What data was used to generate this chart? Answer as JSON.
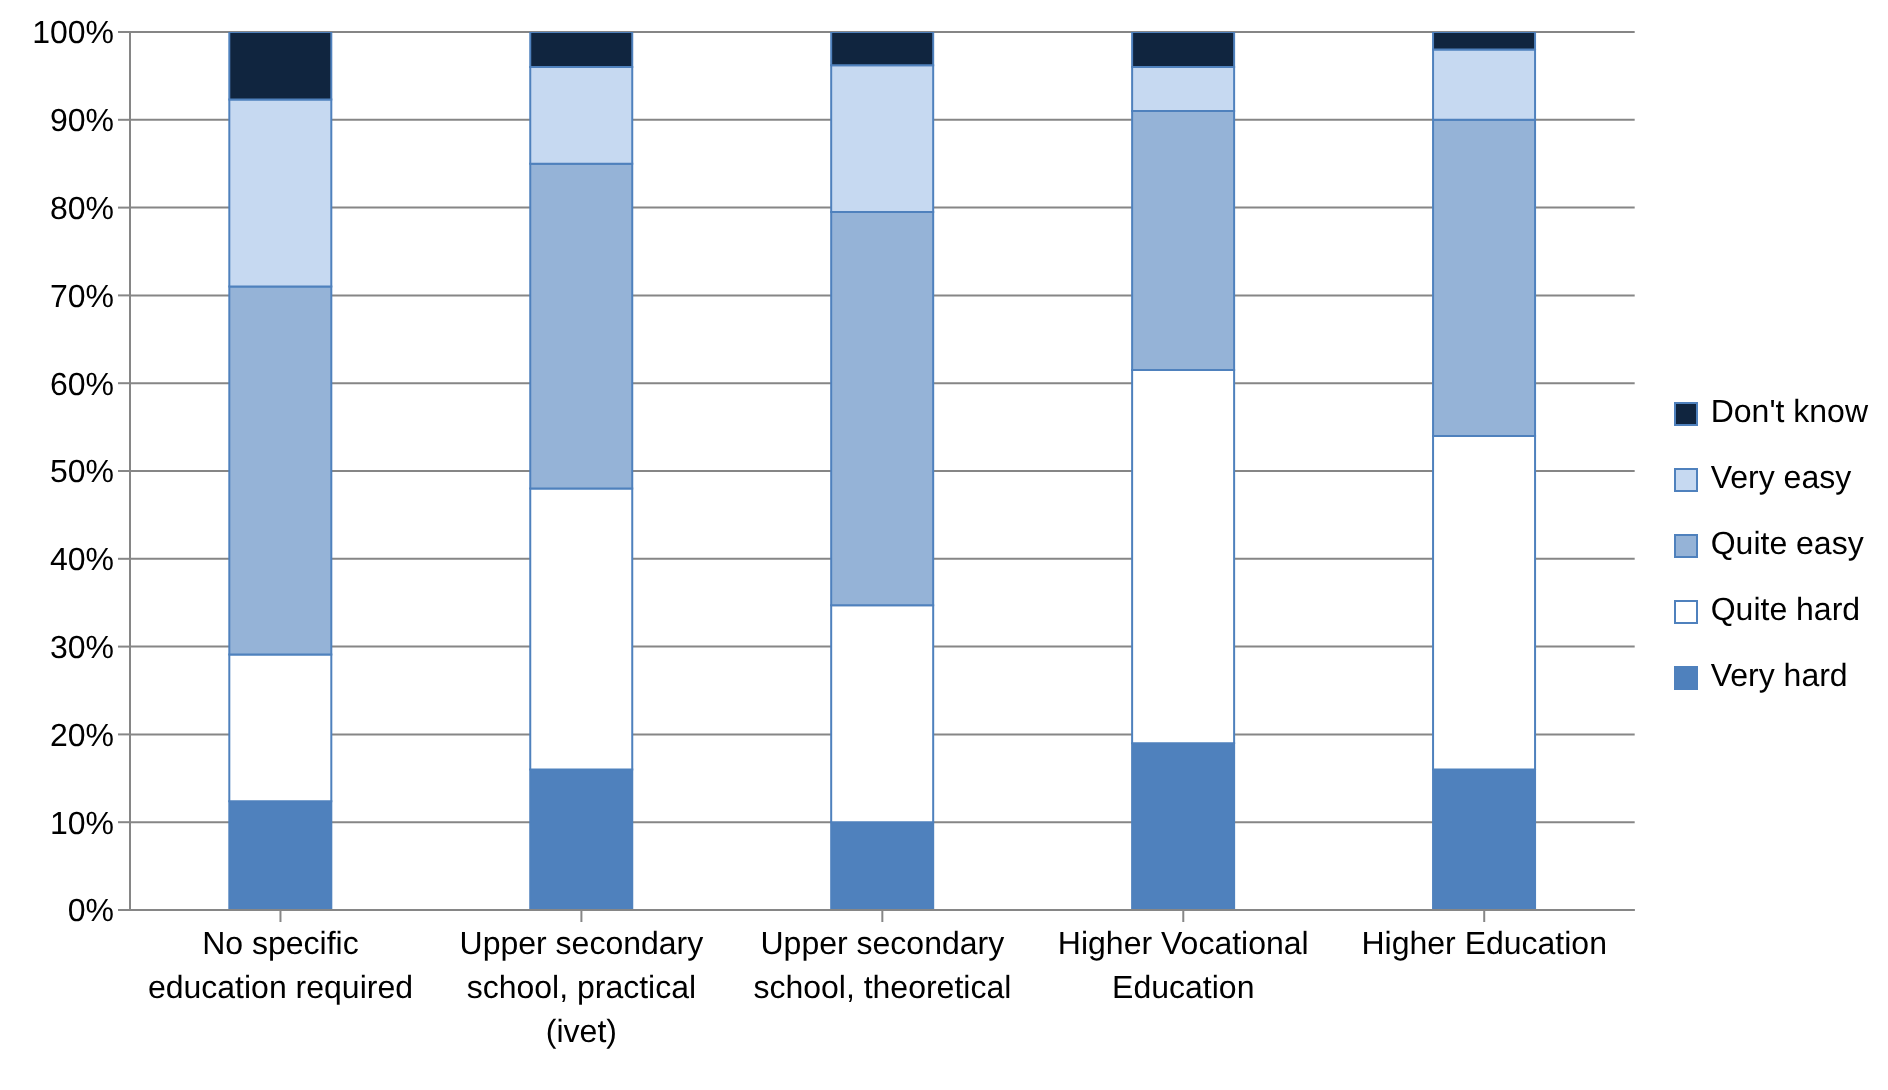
{
  "chart_data": {
    "type": "bar",
    "stacked": true,
    "categories": [
      "No specific education required",
      "Upper secondary school, practical (ivet)",
      "Upper secondary school, theoretical",
      "Higher Vocational Education",
      "Higher Education"
    ],
    "series": [
      {
        "name": "Very hard",
        "color": "#4f81bd",
        "values": [
          12.4,
          16,
          10,
          19,
          16
        ]
      },
      {
        "name": "Quite hard",
        "color": "#ffffff",
        "values": [
          16.7,
          32,
          24.7,
          42.5,
          38
        ]
      },
      {
        "name": "Quite easy",
        "color": "#95b3d7",
        "values": [
          41.9,
          37,
          44.8,
          29.5,
          36
        ]
      },
      {
        "name": "Very easy",
        "color": "#c6d9f1",
        "values": [
          21.3,
          11,
          16.7,
          5,
          8
        ]
      },
      {
        "name": "Don't know",
        "color": "#10253f",
        "values": [
          7.7,
          4,
          3.8,
          4,
          2
        ]
      }
    ],
    "ylim": [
      0,
      100
    ],
    "yticks": [
      {
        "value": 0,
        "label": "0%"
      },
      {
        "value": 10,
        "label": "10%"
      },
      {
        "value": 20,
        "label": "20%"
      },
      {
        "value": 30,
        "label": "30%"
      },
      {
        "value": 40,
        "label": "40%"
      },
      {
        "value": 50,
        "label": "50%"
      },
      {
        "value": 60,
        "label": "60%"
      },
      {
        "value": 70,
        "label": "70%"
      },
      {
        "value": 80,
        "label": "80%"
      },
      {
        "value": 90,
        "label": "90%"
      },
      {
        "value": 100,
        "label": "100%"
      }
    ],
    "grid": "y",
    "legend": "right"
  }
}
